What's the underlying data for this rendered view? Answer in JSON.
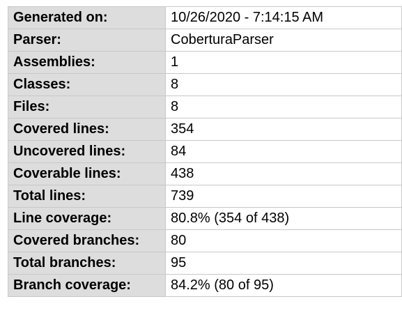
{
  "summary": {
    "rows": [
      {
        "label": "Generated on:",
        "value": "10/26/2020 - 7:14:15 AM"
      },
      {
        "label": "Parser:",
        "value": "CoberturaParser"
      },
      {
        "label": "Assemblies:",
        "value": "1"
      },
      {
        "label": "Classes:",
        "value": "8"
      },
      {
        "label": "Files:",
        "value": "8"
      },
      {
        "label": "Covered lines:",
        "value": "354"
      },
      {
        "label": "Uncovered lines:",
        "value": "84"
      },
      {
        "label": "Coverable lines:",
        "value": "438"
      },
      {
        "label": "Total lines:",
        "value": "739"
      },
      {
        "label": "Line coverage:",
        "value": "80.8% (354 of 438)"
      },
      {
        "label": "Covered branches:",
        "value": "80"
      },
      {
        "label": "Total branches:",
        "value": "95"
      },
      {
        "label": "Branch coverage:",
        "value": "84.2% (80 of 95)"
      }
    ]
  }
}
